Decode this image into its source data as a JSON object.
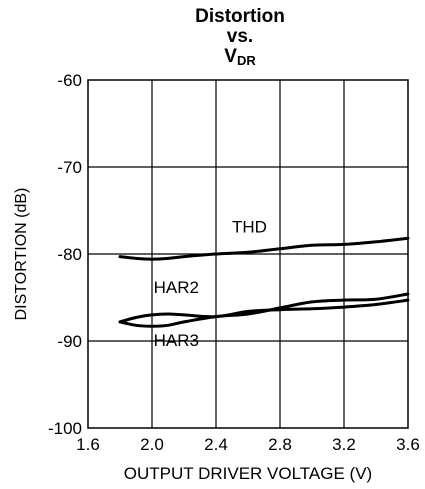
{
  "chart_data": {
    "type": "line",
    "title": {
      "line1": "Distortion",
      "line2": "vs.",
      "line3_main": "V",
      "line3_sub": "DR"
    },
    "xlabel": "OUTPUT DRIVER VOLTAGE  (V)",
    "ylabel": "DISTORTION (dB)",
    "xlim": [
      1.6,
      3.6
    ],
    "ylim": [
      -100,
      -60
    ],
    "xticks": [
      1.6,
      2.0,
      2.4,
      2.8,
      3.2,
      3.6
    ],
    "xtick_labels": [
      "1.6",
      "2.0",
      "2.4",
      "2.8",
      "3.2",
      "3.6"
    ],
    "yticks": [
      -60,
      -70,
      -80,
      -90,
      -100
    ],
    "ytick_labels": [
      "-60",
      "-70",
      "-80",
      "-90",
      "-100"
    ],
    "grid": true,
    "series": [
      {
        "name": "THD",
        "x": [
          1.8,
          1.9,
          2.0,
          2.1,
          2.2,
          2.4,
          2.6,
          2.8,
          3.0,
          3.2,
          3.4,
          3.6
        ],
        "y": [
          -80.3,
          -80.5,
          -80.6,
          -80.5,
          -80.3,
          -80.0,
          -79.8,
          -79.4,
          -79.0,
          -78.9,
          -78.6,
          -78.2
        ]
      },
      {
        "name": "HAR2",
        "x": [
          1.8,
          1.9,
          2.0,
          2.1,
          2.2,
          2.4,
          2.6,
          2.8,
          3.0,
          3.2,
          3.4,
          3.6
        ],
        "y": [
          -87.8,
          -87.3,
          -87.0,
          -86.9,
          -87.0,
          -87.2,
          -86.6,
          -86.4,
          -86.3,
          -86.1,
          -85.8,
          -85.3
        ]
      },
      {
        "name": "HAR3",
        "x": [
          1.8,
          1.9,
          2.0,
          2.1,
          2.2,
          2.4,
          2.6,
          2.8,
          3.0,
          3.2,
          3.4,
          3.6
        ],
        "y": [
          -87.8,
          -88.2,
          -88.3,
          -88.2,
          -87.8,
          -87.2,
          -86.9,
          -86.2,
          -85.5,
          -85.3,
          -85.2,
          -84.6
        ]
      }
    ],
    "annotations": [
      {
        "text": "THD",
        "x": 2.5,
        "y": -77.5
      },
      {
        "text": "HAR2",
        "x": 2.01,
        "y": -84.5
      },
      {
        "text": "HAR3",
        "x": 2.01,
        "y": -90.6
      }
    ]
  }
}
